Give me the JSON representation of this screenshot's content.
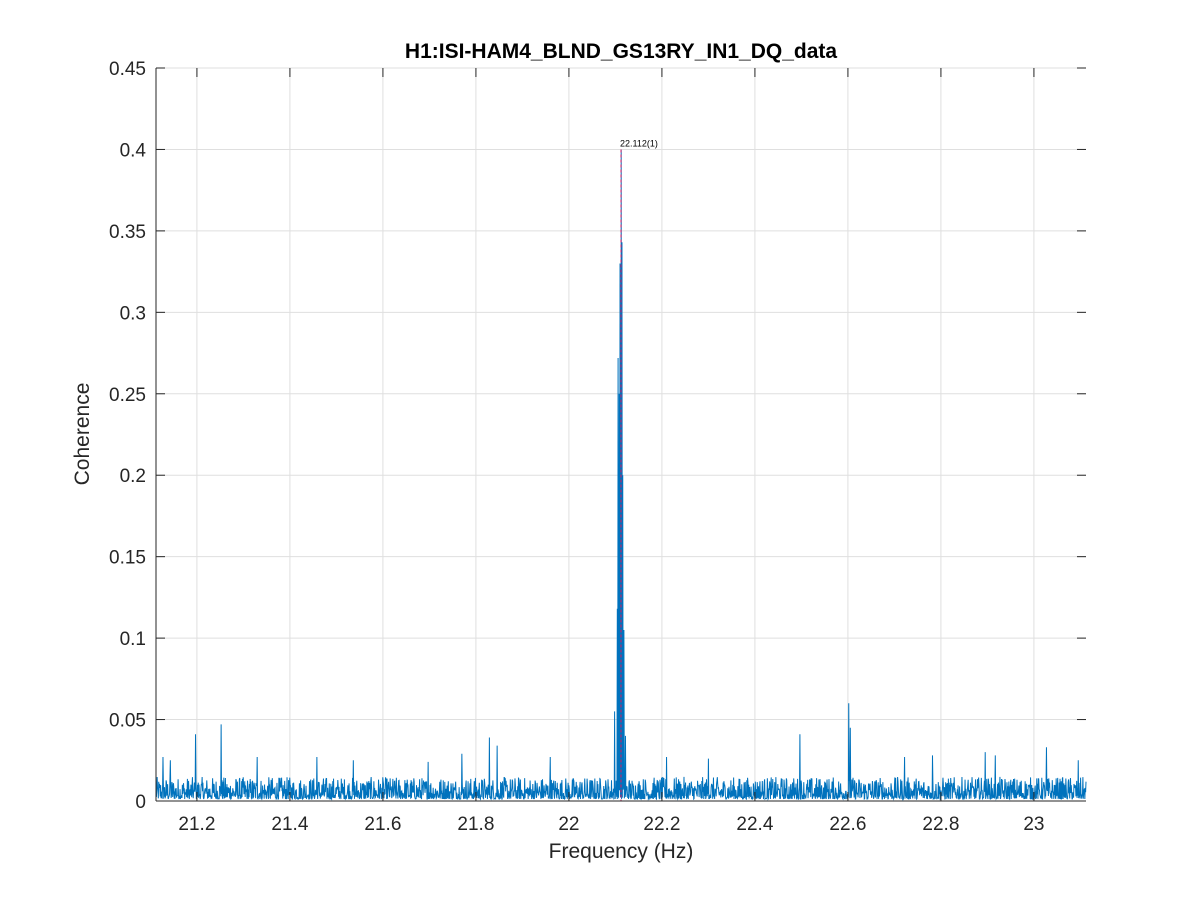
{
  "chart_data": {
    "type": "line",
    "title": "H1:ISI-HAM4_BLND_GS13RY_IN1_DQ_data",
    "xlabel": "Frequency (Hz)",
    "ylabel": "Coherence",
    "xlim": [
      21.112,
      23.112
    ],
    "ylim": [
      0,
      0.45
    ],
    "xticks": [
      21.2,
      21.4,
      21.6,
      21.8,
      22,
      22.2,
      22.4,
      22.6,
      22.8,
      23
    ],
    "xtick_labels": [
      "21.2",
      "21.4",
      "21.6",
      "21.8",
      "22",
      "22.2",
      "22.4",
      "22.6",
      "22.8",
      "23"
    ],
    "yticks": [
      0,
      0.05,
      0.1,
      0.15,
      0.2,
      0.25,
      0.3,
      0.35,
      0.4,
      0.45
    ],
    "ytick_labels": [
      "0",
      "0.05",
      "0.1",
      "0.15",
      "0.2",
      "0.25",
      "0.3",
      "0.35",
      "0.4",
      "0.45"
    ],
    "grid": true,
    "series_color": "#0072BD",
    "marker_color": "#D81B60",
    "noise_floor": 0.008,
    "peaks": [
      {
        "x": 21.127,
        "y": 0.027
      },
      {
        "x": 21.143,
        "y": 0.025
      },
      {
        "x": 21.197,
        "y": 0.041
      },
      {
        "x": 21.252,
        "y": 0.047
      },
      {
        "x": 21.33,
        "y": 0.027
      },
      {
        "x": 21.458,
        "y": 0.027
      },
      {
        "x": 21.536,
        "y": 0.025
      },
      {
        "x": 21.697,
        "y": 0.024
      },
      {
        "x": 21.77,
        "y": 0.029
      },
      {
        "x": 21.829,
        "y": 0.039
      },
      {
        "x": 21.846,
        "y": 0.034
      },
      {
        "x": 21.96,
        "y": 0.027
      },
      {
        "x": 22.098,
        "y": 0.055
      },
      {
        "x": 22.104,
        "y": 0.118
      },
      {
        "x": 22.106,
        "y": 0.272
      },
      {
        "x": 22.108,
        "y": 0.25
      },
      {
        "x": 22.11,
        "y": 0.33
      },
      {
        "x": 22.112,
        "y": 0.4
      },
      {
        "x": 22.114,
        "y": 0.343
      },
      {
        "x": 22.116,
        "y": 0.2
      },
      {
        "x": 22.118,
        "y": 0.105
      },
      {
        "x": 22.122,
        "y": 0.04
      },
      {
        "x": 22.21,
        "y": 0.027
      },
      {
        "x": 22.3,
        "y": 0.026
      },
      {
        "x": 22.497,
        "y": 0.041
      },
      {
        "x": 22.602,
        "y": 0.06
      },
      {
        "x": 22.605,
        "y": 0.045
      },
      {
        "x": 22.722,
        "y": 0.027
      },
      {
        "x": 22.782,
        "y": 0.028
      },
      {
        "x": 22.895,
        "y": 0.03
      },
      {
        "x": 22.917,
        "y": 0.028
      },
      {
        "x": 23.027,
        "y": 0.033
      },
      {
        "x": 23.095,
        "y": 0.025
      }
    ],
    "annotations": [
      {
        "x": 22.112,
        "y": 0.4,
        "text": "22.112(1)"
      }
    ]
  }
}
